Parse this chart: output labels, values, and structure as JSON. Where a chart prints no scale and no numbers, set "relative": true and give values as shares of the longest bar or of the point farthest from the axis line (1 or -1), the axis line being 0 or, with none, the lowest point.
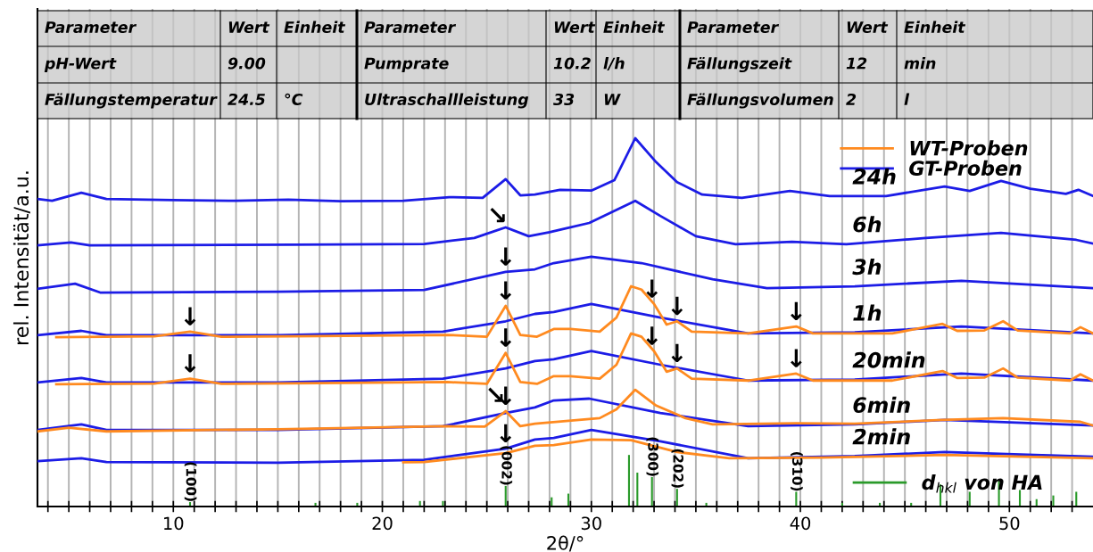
{
  "chart_data": {
    "type": "line",
    "relative": true,
    "xlabel": "2θ/°",
    "ylabel": "rel. Intensität/a.u.",
    "xlim": [
      3.5,
      54.0
    ],
    "xticks": [
      {
        "value": 4,
        "label": null
      },
      {
        "value": 5,
        "label": null
      },
      {
        "value": 6,
        "label": null
      },
      {
        "value": 7,
        "label": null
      },
      {
        "value": 8,
        "label": null
      },
      {
        "value": 9,
        "label": null
      },
      10,
      {
        "value": 11,
        "label": null
      },
      {
        "value": 12,
        "label": null
      },
      {
        "value": 13,
        "label": null
      },
      {
        "value": 14,
        "label": null
      },
      {
        "value": 15,
        "label": null
      },
      {
        "value": 16,
        "label": null
      },
      {
        "value": 17,
        "label": null
      },
      {
        "value": 18,
        "label": null
      },
      {
        "value": 19,
        "label": null
      },
      20,
      {
        "value": 21,
        "label": null
      },
      {
        "value": 22,
        "label": null
      },
      {
        "value": 23,
        "label": null
      },
      {
        "value": 24,
        "label": null
      },
      {
        "value": 25,
        "label": null
      },
      {
        "value": 26,
        "label": null
      },
      {
        "value": 27,
        "label": null
      },
      {
        "value": 28,
        "label": null
      },
      {
        "value": 29,
        "label": null
      },
      30,
      {
        "value": 31,
        "label": null
      },
      {
        "value": 32,
        "label": null
      },
      {
        "value": 33,
        "label": null
      },
      {
        "value": 34,
        "label": null
      },
      {
        "value": 35,
        "label": null
      },
      {
        "value": 36,
        "label": null
      },
      {
        "value": 37,
        "label": null
      },
      {
        "value": 38,
        "label": null
      },
      {
        "value": 39,
        "label": null
      },
      40,
      {
        "value": 41,
        "label": null
      },
      {
        "value": 42,
        "label": null
      },
      {
        "value": 43,
        "label": null
      },
      {
        "value": 44,
        "label": null
      },
      {
        "value": 45,
        "label": null
      },
      {
        "value": 46,
        "label": null
      },
      {
        "value": 47,
        "label": null
      },
      {
        "value": 48,
        "label": null
      },
      {
        "value": 49,
        "label": null
      },
      50,
      {
        "value": 51,
        "label": null
      },
      {
        "value": 52,
        "label": null
      },
      {
        "value": 53,
        "label": null
      }
    ],
    "grid": "x",
    "legend": "top right",
    "tick_labels": "x",
    "series": [
      {
        "type": "bar",
        "name": "d$_{hkl}$ von HA",
        "color": "#2a9a2a",
        "x": [
          10.8,
          16.8,
          18.8,
          21.8,
          22.9,
          25.9,
          28.1,
          28.9,
          31.8,
          32.2,
          32.9,
          34.1,
          35.5,
          39.8,
          42.0,
          43.8,
          45.3,
          46.7,
          48.1,
          49.5,
          50.5,
          51.3,
          52.1,
          53.2
        ],
        "values": [
          0.012,
          0.01,
          0.01,
          0.015,
          0.015,
          0.056,
          0.025,
          0.035,
          0.14,
          0.092,
          0.08,
          0.048,
          0.01,
          0.04,
          0.01,
          0.01,
          0.01,
          0.06,
          0.04,
          0.07,
          0.045,
          0.02,
          0.03,
          0.04
        ]
      },
      {
        "name": "GT-Proben",
        "color": "#1c1ce6",
        "x": [
          3.5,
          4.2,
          5.6,
          6.8,
          10,
          13,
          15.5,
          18,
          21,
          23.2,
          24.8,
          25.9,
          26.6,
          27.3,
          28.5,
          30.0,
          31.1,
          32.1,
          33.1,
          34.1,
          35.3,
          37.2,
          39.5,
          41.4,
          44.1,
          46.9,
          48.1,
          49.6,
          51.0,
          52.7,
          53.3,
          54.0
        ],
        "values": [
          0.835,
          0.83,
          0.852,
          0.835,
          0.832,
          0.83,
          0.833,
          0.829,
          0.83,
          0.84,
          0.838,
          0.889,
          0.845,
          0.847,
          0.86,
          0.858,
          0.886,
          1.0,
          0.935,
          0.881,
          0.847,
          0.838,
          0.857,
          0.843,
          0.843,
          0.869,
          0.857,
          0.884,
          0.863,
          0.849,
          0.86,
          0.843
        ]
      },
      {
        "color": "#1c1ce6",
        "x": [
          3.5,
          5.1,
          6.0,
          15.8,
          22.0,
          24.4,
          25.9,
          27.0,
          28.0,
          29.9,
          32.1,
          33.3,
          35.0,
          36.9,
          39.6,
          42.2,
          46.0,
          49.6,
          53.2,
          54.0
        ],
        "values": [
          0.709,
          0.717,
          0.709,
          0.711,
          0.713,
          0.729,
          0.758,
          0.734,
          0.745,
          0.77,
          0.83,
          0.789,
          0.734,
          0.712,
          0.719,
          0.712,
          0.729,
          0.743,
          0.724,
          0.714
        ]
      },
      {
        "color": "#1c1ce6",
        "x": [
          3.5,
          5.3,
          6.5,
          15.0,
          22.0,
          25.9,
          27.3,
          28.2,
          30.0,
          32.4,
          35.8,
          38.4,
          42.6,
          47.7,
          54.0
        ],
        "values": [
          0.591,
          0.605,
          0.581,
          0.583,
          0.588,
          0.637,
          0.644,
          0.661,
          0.678,
          0.661,
          0.617,
          0.593,
          0.598,
          0.613,
          0.593
        ]
      },
      {
        "color": "#1c1ce6",
        "x": [
          3.5,
          5.6,
          6.8,
          15.0,
          22.9,
          25.9,
          27.3,
          28.2,
          30.0,
          33.3,
          37.5,
          42.6,
          47.7,
          54.0
        ],
        "values": [
          0.465,
          0.477,
          0.465,
          0.465,
          0.475,
          0.503,
          0.523,
          0.528,
          0.55,
          0.513,
          0.47,
          0.473,
          0.489,
          0.47
        ]
      },
      {
        "color": "#1c1ce6",
        "x": [
          3.5,
          5.6,
          6.8,
          15.0,
          22.9,
          25.9,
          27.3,
          28.2,
          30.0,
          33.3,
          37.5,
          42.6,
          47.7,
          54.0
        ],
        "values": [
          0.337,
          0.349,
          0.337,
          0.337,
          0.347,
          0.375,
          0.395,
          0.4,
          0.422,
          0.385,
          0.342,
          0.345,
          0.361,
          0.342
        ]
      },
      {
        "color": "#1c1ce6",
        "x": [
          3.5,
          5.6,
          6.8,
          15.0,
          22.9,
          25.9,
          27.3,
          28.2,
          29.9,
          33.3,
          37.5,
          42.6,
          46.9,
          54.0
        ],
        "values": [
          0.208,
          0.223,
          0.208,
          0.208,
          0.218,
          0.254,
          0.269,
          0.288,
          0.293,
          0.254,
          0.218,
          0.223,
          0.235,
          0.22
        ]
      },
      {
        "color": "#1c1ce6",
        "x": [
          3.5,
          5.6,
          6.8,
          15.0,
          22.0,
          25.9,
          27.3,
          28.2,
          30.0,
          33.3,
          37.5,
          42.6,
          46.9,
          54.0
        ],
        "values": [
          0.123,
          0.131,
          0.121,
          0.119,
          0.127,
          0.157,
          0.182,
          0.186,
          0.208,
          0.177,
          0.131,
          0.137,
          0.148,
          0.135
        ]
      },
      {
        "name": "WT-Proben",
        "color": "#ff8a1f",
        "x": [
          4.4,
          9.1,
          10.8,
          12.3,
          17.0,
          23.1,
          25.0,
          25.9,
          26.6,
          27.4,
          28.2,
          29.0,
          30.4,
          31.2,
          31.9,
          32.4,
          33.0,
          33.6,
          34.1,
          34.8,
          37.5,
          39.8,
          40.6,
          44.4,
          46.8,
          47.5,
          48.8,
          49.7,
          50.4,
          52.9,
          53.4,
          54.0
        ],
        "values": [
          0.46,
          0.462,
          0.475,
          0.461,
          0.463,
          0.466,
          0.461,
          0.545,
          0.466,
          0.461,
          0.482,
          0.482,
          0.475,
          0.513,
          0.598,
          0.589,
          0.55,
          0.494,
          0.503,
          0.475,
          0.47,
          0.489,
          0.47,
          0.47,
          0.496,
          0.477,
          0.478,
          0.503,
          0.478,
          0.47,
          0.487,
          0.47
        ]
      },
      {
        "color": "#ff8a1f",
        "x": [
          4.4,
          9.1,
          10.8,
          12.3,
          17.0,
          23.1,
          25.0,
          25.9,
          26.6,
          27.4,
          28.2,
          29.0,
          30.4,
          31.2,
          31.9,
          32.4,
          33.0,
          33.6,
          34.1,
          34.8,
          37.5,
          39.8,
          40.6,
          44.4,
          46.8,
          47.5,
          48.8,
          49.7,
          50.4,
          52.9,
          53.4,
          54.0
        ],
        "values": [
          0.332,
          0.334,
          0.347,
          0.333,
          0.335,
          0.338,
          0.333,
          0.417,
          0.338,
          0.333,
          0.354,
          0.354,
          0.347,
          0.385,
          0.47,
          0.461,
          0.422,
          0.366,
          0.375,
          0.347,
          0.342,
          0.361,
          0.342,
          0.342,
          0.368,
          0.349,
          0.35,
          0.375,
          0.35,
          0.342,
          0.359,
          0.342
        ]
      },
      {
        "color": "#ff8a1f",
        "x": [
          3.5,
          5.0,
          6.8,
          15.0,
          23.1,
          24.9,
          25.9,
          26.6,
          27.3,
          30.4,
          31.2,
          32.1,
          33.1,
          34.5,
          35.8,
          39.8,
          42.6,
          46.8,
          49.7,
          53.4,
          54.0
        ],
        "values": [
          0.204,
          0.214,
          0.204,
          0.21,
          0.218,
          0.217,
          0.259,
          0.218,
          0.225,
          0.24,
          0.264,
          0.317,
          0.274,
          0.24,
          0.223,
          0.226,
          0.225,
          0.235,
          0.24,
          0.23,
          0.22
        ]
      },
      {
        "color": "#ff8a1f",
        "x": [
          21.0,
          22.0,
          25.9,
          27.3,
          28.2,
          30.0,
          31.9,
          34.1,
          36.6,
          41.0,
          46.9,
          54.0
        ],
        "values": [
          0.12,
          0.121,
          0.145,
          0.165,
          0.167,
          0.182,
          0.18,
          0.148,
          0.131,
          0.133,
          0.14,
          0.131
        ]
      }
    ],
    "annotations": [
      "Parameter",
      "Wert",
      "Einheit",
      "Parameter",
      "Wert",
      "Einheit",
      "Parameter",
      "Wert",
      "Einheit",
      "pH-Wert",
      "9.00",
      null,
      "Pumprate",
      "10.2",
      "l/h",
      "Fällungszeit",
      "12",
      "min",
      "Fällungstemperatur",
      "24.5",
      "°C",
      "Ultraschallleistung",
      "33",
      "W",
      "Fällungsvolumen",
      "2",
      "l",
      "24h",
      "6h",
      "3h",
      "1h",
      "20min",
      "6min",
      "2min",
      {
        "text": "(100)",
        "x": 10.8,
        "y": 0.012
      },
      {
        "text": "(002)",
        "x": 25.9,
        "y": 0.056
      },
      {
        "text": "(300)",
        "x": 32.9,
        "y": 0.08
      },
      {
        "text": "(202)",
        "x": 34.1,
        "y": 0.048
      },
      {
        "text": "(310)",
        "x": 39.8,
        "y": 0.04
      },
      {
        "text": "↓",
        "x": 10.8,
        "y": 0.475
      },
      {
        "text": "↓",
        "x": 25.9,
        "y": 0.545
      },
      {
        "text": "↓",
        "x": 32.9,
        "y": 0.55
      },
      {
        "text": "↓",
        "x": 34.1,
        "y": 0.503
      },
      {
        "text": "↓",
        "x": 39.8,
        "y": 0.489
      },
      {
        "text": "↓",
        "x": 10.8,
        "y": 0.347
      },
      {
        "text": "↓",
        "x": 25.9,
        "y": 0.417
      },
      {
        "text": "↓",
        "x": 32.9,
        "y": 0.422
      },
      {
        "text": "↓",
        "x": 34.1,
        "y": 0.375
      },
      {
        "text": "↓",
        "x": 39.8,
        "y": 0.361
      },
      {
        "text": "↓",
        "x": 25.9,
        "y": 0.637
      },
      {
        "text": "↘",
        "x": 25.5,
        "y": 0.75
      },
      {
        "text": "↓",
        "x": 25.9,
        "y": 0.259
      },
      {
        "text": "↘",
        "x": 25.4,
        "y": 0.262
      },
      {
        "text": "↓",
        "x": 25.9,
        "y": 0.157
      }
    ]
  }
}
